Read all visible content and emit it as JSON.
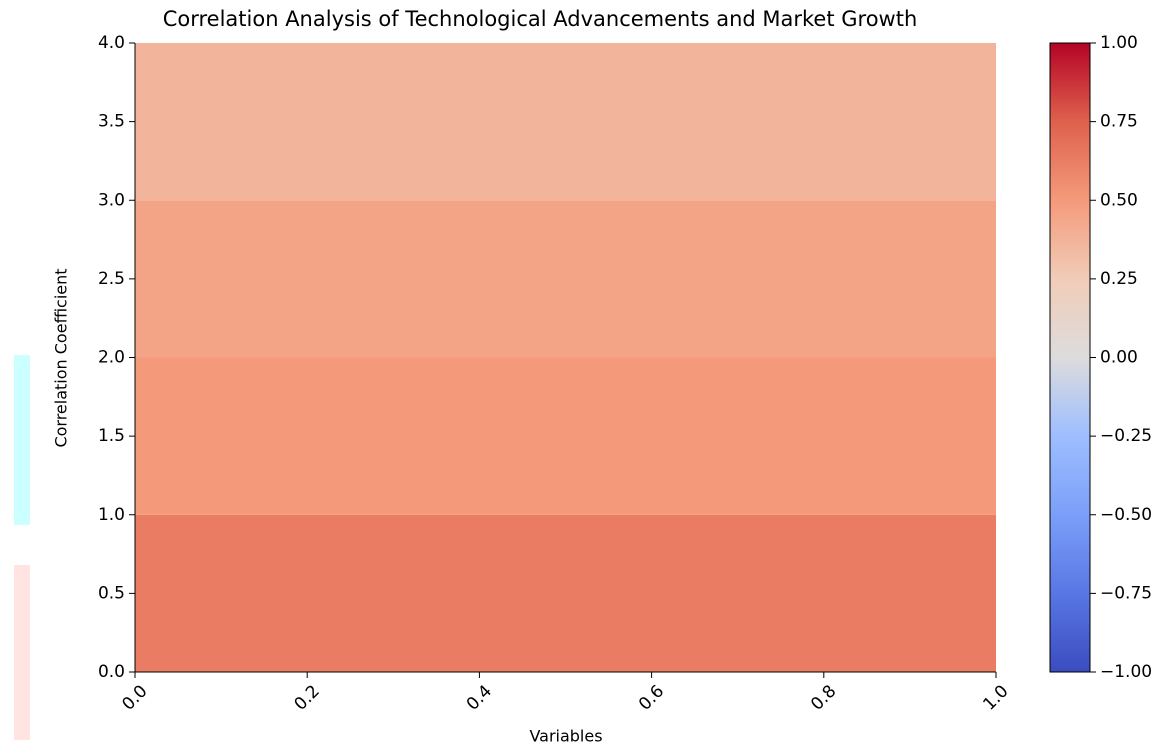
{
  "chart_data": {
    "type": "heatmap",
    "title": "Correlation Analysis of Technological Advancements and Market Growth",
    "x_label": "Variables",
    "y_label": "Correlation Coefficient",
    "ybins": [
      0,
      1,
      2,
      3,
      4
    ],
    "values": [
      0.63,
      0.5,
      0.45,
      0.37
    ],
    "colormap": "coolwarm",
    "xlim": [
      0,
      1
    ],
    "xticks": [
      {
        "value": 0,
        "label": "0.0"
      },
      0.2,
      0.4,
      0.6,
      0.8,
      {
        "value": 1,
        "label": "1.0"
      }
    ],
    "ylim": [
      0,
      4
    ],
    "yticks": [
      {
        "value": 0,
        "label": "0.0"
      },
      0.5,
      {
        "value": 1,
        "label": "1.0"
      },
      1.5,
      {
        "value": 2,
        "label": "2.0"
      },
      2.5,
      {
        "value": 3,
        "label": "3.0"
      },
      3.5,
      {
        "value": 4,
        "label": "4.0"
      }
    ],
    "clim": [
      -1,
      1
    ],
    "cticks": [
      {
        "value": -1,
        "label": "−1.00"
      },
      {
        "value": -0.75,
        "label": "−0.75"
      },
      {
        "value": -0.5,
        "label": "−0.50"
      },
      {
        "value": -0.25,
        "label": "−0.25"
      },
      {
        "value": 0,
        "label": "0.00"
      },
      {
        "value": 0.25,
        "label": "0.25"
      },
      {
        "value": 0.5,
        "label": "0.50"
      },
      {
        "value": 0.75,
        "label": "0.75"
      },
      {
        "value": 1,
        "label": "1.00"
      }
    ]
  }
}
